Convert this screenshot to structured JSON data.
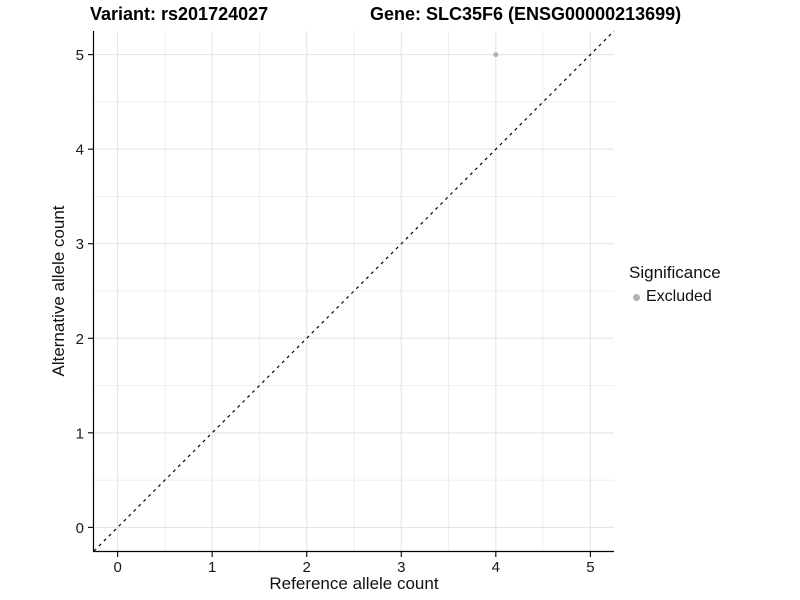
{
  "chart_data": {
    "type": "scatter",
    "title_left": "Variant: rs201724027",
    "title_right": "Gene: SLC35F6 (ENSG00000213699)",
    "xlabel": "Reference allele count",
    "ylabel": "Alternative allele count",
    "xlim": [
      -0.25,
      5.25
    ],
    "ylim": [
      -0.25,
      5.25
    ],
    "x_ticks": [
      0,
      1,
      2,
      3,
      4,
      5
    ],
    "y_ticks": [
      0,
      1,
      2,
      3,
      4,
      5
    ],
    "x_minor_ticks": [
      0.5,
      1.5,
      2.5,
      3.5,
      4.5
    ],
    "y_minor_ticks": [
      0.5,
      1.5,
      2.5,
      3.5,
      4.5
    ],
    "grid": true,
    "reference_line": {
      "name": "identity-line",
      "from": [
        -0.25,
        -0.25
      ],
      "to": [
        5.25,
        5.25
      ],
      "style": "dashed",
      "color": "#000000"
    },
    "series": [
      {
        "name": "Excluded",
        "color": "#b3b3b3",
        "points": [
          {
            "x": 4,
            "y": 5
          }
        ]
      }
    ],
    "legend": {
      "title": "Significance",
      "position": "right",
      "items": [
        {
          "label": "Excluded",
          "color": "#b3b3b3"
        }
      ]
    },
    "colors": {
      "grid_major": "#e3e3e3",
      "grid_minor": "#efefef",
      "axis_line": "#000000",
      "tick_text": "#1a1a1a",
      "background": "#ffffff"
    }
  }
}
